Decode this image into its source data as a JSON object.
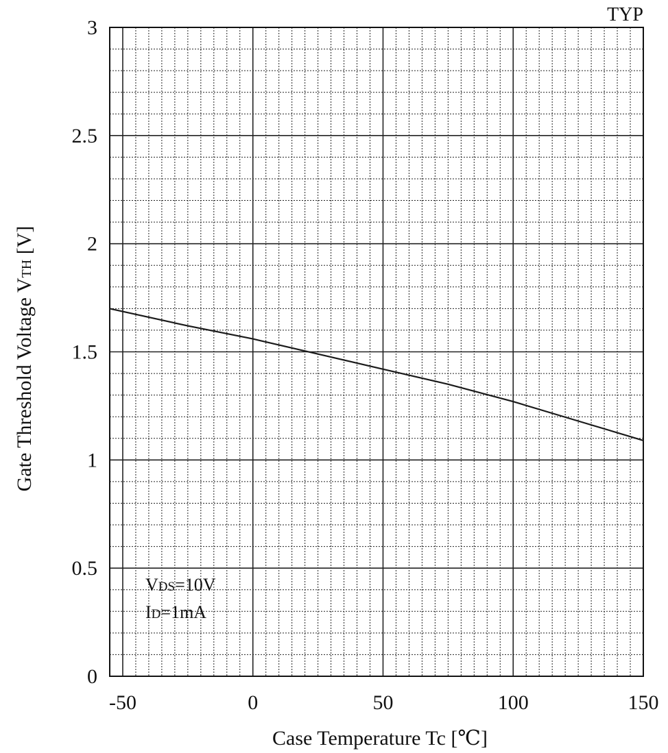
{
  "chart_data": {
    "type": "line",
    "title": "",
    "badge": "TYP",
    "xlabel": "Case Temperature  Tc [℃]",
    "ylabel_main": "Gate Threshold Voltage  V",
    "ylabel_sub": "TH",
    "ylabel_unit": " [V]",
    "xlim": [
      -55,
      150
    ],
    "ylim": [
      0,
      3
    ],
    "x_ticks": [
      -50,
      0,
      50,
      100,
      150
    ],
    "x_tick_labels": [
      "-50",
      "0",
      "50",
      "100",
      "150"
    ],
    "y_ticks": [
      0,
      0.5,
      1,
      1.5,
      2,
      2.5,
      3
    ],
    "y_tick_labels": [
      "0",
      "0.5",
      "1",
      "1.5",
      "2",
      "2.5",
      "3"
    ],
    "grid": true,
    "conditions": [
      {
        "main": "V",
        "sub": "DS",
        "value": "=10V"
      },
      {
        "main": "I",
        "sub": "D",
        "value": "=1mA"
      }
    ],
    "series": [
      {
        "x": [
          -55,
          -25,
          0,
          25,
          50,
          75,
          100,
          125,
          150
        ],
        "y": [
          1.7,
          1.62,
          1.56,
          1.49,
          1.42,
          1.35,
          1.27,
          1.18,
          1.09
        ]
      }
    ],
    "colors": {
      "line": "#1a1a1a",
      "grid": "#222222",
      "background": "#ffffff"
    }
  }
}
